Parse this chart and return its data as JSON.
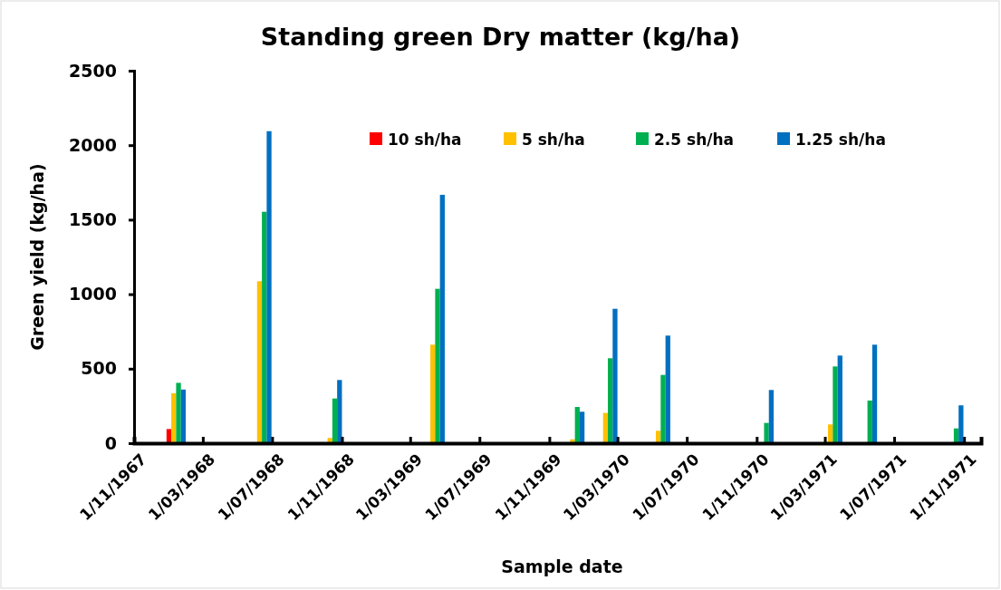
{
  "chart_data": {
    "type": "bar",
    "title": "Standing green Dry matter (kg/ha)",
    "xlabel": "Sample date",
    "ylabel": "Green yield (kg/ha)",
    "x": [
      "1968-01-14",
      "1968-06-13",
      "1968-10-15",
      "1969-04-14",
      "1969-12-16",
      "1970-02-12",
      "1970-05-16",
      "1970-11-14",
      "1971-03-15",
      "1971-05-15",
      "1971-10-14"
    ],
    "series": [
      {
        "name": "10 sh/ha",
        "color": "#ff0000",
        "values": [
          95,
          0,
          0,
          0,
          0,
          0,
          0,
          0,
          0,
          0,
          0
        ]
      },
      {
        "name": "5 sh/ha",
        "color": "#ffc000",
        "values": [
          335,
          1087,
          35,
          661,
          26,
          203,
          83,
          0,
          126,
          0,
          0
        ]
      },
      {
        "name": "2.5 sh/ha",
        "color": "#00b050",
        "values": [
          405,
          1553,
          300,
          1036,
          243,
          570,
          458,
          136,
          515,
          286,
          99
        ]
      },
      {
        "name": "1.25 sh/ha",
        "color": "#0070c0",
        "values": [
          360,
          2094,
          424,
          1667,
          211,
          902,
          722,
          357,
          588,
          661,
          254
        ]
      }
    ],
    "xlim": [
      "1967-11-01",
      "1971-12-01"
    ],
    "xticks": [
      {
        "value": "1967-11-01",
        "label": "1/11/1967"
      },
      {
        "value": "1968-03-01",
        "label": "1/03/1968"
      },
      {
        "value": "1968-07-01",
        "label": "1/07/1968"
      },
      {
        "value": "1968-11-01",
        "label": "1/11/1968"
      },
      {
        "value": "1969-03-01",
        "label": "1/03/1969"
      },
      {
        "value": "1969-07-01",
        "label": "1/07/1969"
      },
      {
        "value": "1969-11-01",
        "label": "1/11/1969"
      },
      {
        "value": "1970-03-01",
        "label": "1/03/1970"
      },
      {
        "value": "1970-07-01",
        "label": "1/07/1970"
      },
      {
        "value": "1970-11-01",
        "label": "1/11/1970"
      },
      {
        "value": "1971-03-01",
        "label": "1/03/1971"
      },
      {
        "value": "1971-07-01",
        "label": "1/07/1971"
      },
      {
        "value": "1971-11-01",
        "label": "1/11/1971"
      }
    ],
    "ylim": [
      0,
      2500
    ],
    "yticks": [
      0,
      500,
      1000,
      1500,
      2000,
      2500
    ],
    "grid": false,
    "legend": "top right"
  }
}
